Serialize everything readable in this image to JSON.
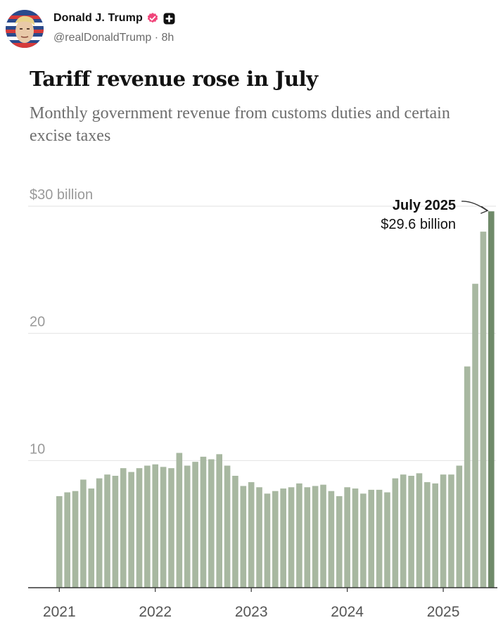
{
  "post": {
    "display_name": "Donald J. Trump",
    "handle": "@realDonaldTrump",
    "separator": "·",
    "time": "8h",
    "icons": {
      "verified": "verified-badge-icon",
      "plus": "plus-badge-icon"
    },
    "colors": {
      "verified": "#f0457a",
      "plus_badge": "#111111"
    }
  },
  "chart": {
    "title": "Tariff revenue rose in July",
    "subtitle": "Monthly government revenue from customs duties and certain excise taxes"
  },
  "chart_data": {
    "type": "bar",
    "title": "Tariff revenue rose in July",
    "subtitle": "Monthly government revenue from customs duties and certain excise taxes",
    "xlabel": "",
    "ylabel": "",
    "ylim": [
      0,
      30
    ],
    "yticks": [
      {
        "value": 30,
        "label": "$30 billion"
      },
      {
        "value": 20,
        "label": "20"
      },
      {
        "value": 10,
        "label": "10"
      }
    ],
    "xticks": [
      {
        "index": 0,
        "label": "2021"
      },
      {
        "index": 12,
        "label": "2022"
      },
      {
        "index": 24,
        "label": "2023"
      },
      {
        "index": 36,
        "label": "2024"
      },
      {
        "index": 48,
        "label": "2025"
      }
    ],
    "grid": true,
    "bar_color": "#a8b8a1",
    "highlight_color": "#6f8a69",
    "highlight_index": 54,
    "categories": [
      "Jan 2021",
      "Feb 2021",
      "Mar 2021",
      "Apr 2021",
      "May 2021",
      "Jun 2021",
      "Jul 2021",
      "Aug 2021",
      "Sep 2021",
      "Oct 2021",
      "Nov 2021",
      "Dec 2021",
      "Jan 2022",
      "Feb 2022",
      "Mar 2022",
      "Apr 2022",
      "May 2022",
      "Jun 2022",
      "Jul 2022",
      "Aug 2022",
      "Sep 2022",
      "Oct 2022",
      "Nov 2022",
      "Dec 2022",
      "Jan 2023",
      "Feb 2023",
      "Mar 2023",
      "Apr 2023",
      "May 2023",
      "Jun 2023",
      "Jul 2023",
      "Aug 2023",
      "Sep 2023",
      "Oct 2023",
      "Nov 2023",
      "Dec 2023",
      "Jan 2024",
      "Feb 2024",
      "Mar 2024",
      "Apr 2024",
      "May 2024",
      "Jun 2024",
      "Jul 2024",
      "Aug 2024",
      "Sep 2024",
      "Oct 2024",
      "Nov 2024",
      "Dec 2024",
      "Jan 2025",
      "Feb 2025",
      "Mar 2025",
      "Apr 2025",
      "May 2025",
      "Jun 2025",
      "Jul 2025"
    ],
    "values": [
      7.2,
      7.5,
      7.6,
      8.5,
      7.8,
      8.6,
      8.9,
      8.8,
      9.4,
      9.1,
      9.4,
      9.6,
      9.7,
      9.5,
      9.4,
      10.6,
      9.6,
      9.9,
      10.3,
      10.1,
      10.5,
      9.6,
      8.8,
      8.0,
      8.3,
      7.9,
      7.4,
      7.6,
      7.8,
      7.9,
      8.2,
      7.9,
      8.0,
      8.1,
      7.6,
      7.2,
      7.9,
      7.8,
      7.4,
      7.7,
      7.7,
      7.5,
      8.6,
      8.9,
      8.8,
      9.0,
      8.3,
      8.2,
      8.9,
      8.9,
      9.6,
      17.4,
      23.9,
      28.0,
      29.6
    ],
    "annotation": {
      "index": 54,
      "label": "July 2025",
      "value_label": "$29.6 billion"
    }
  }
}
